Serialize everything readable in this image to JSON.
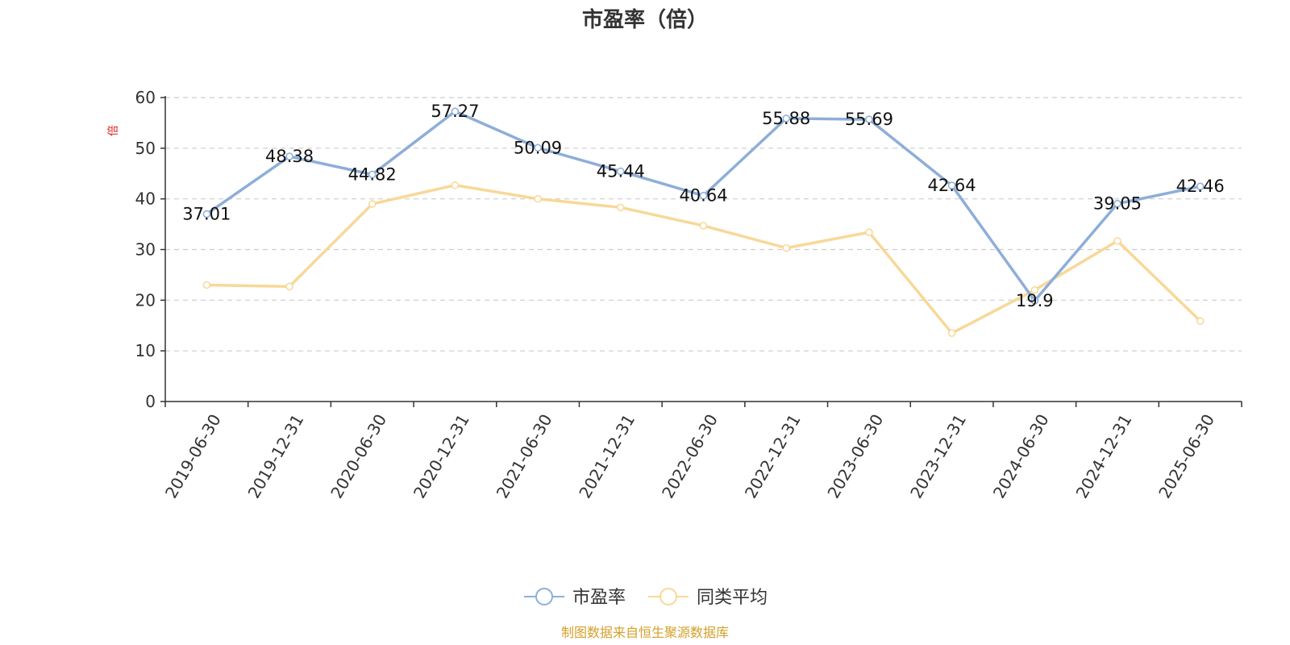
{
  "chart_data": {
    "type": "line",
    "title": "市盈率（倍）",
    "ylabel": "倍",
    "ylim": [
      0,
      60
    ],
    "yticks": [
      0,
      10,
      20,
      30,
      40,
      50,
      60
    ],
    "grid": true,
    "legend_position": "bottom-center",
    "categories": [
      "2019-06-30",
      "2019-12-31",
      "2020-06-30",
      "2020-12-31",
      "2021-06-30",
      "2021-12-31",
      "2022-06-30",
      "2022-12-31",
      "2023-06-30",
      "2023-12-31",
      "2024-06-30",
      "2024-12-31",
      "2025-06-30"
    ],
    "series": [
      {
        "name": "市盈率",
        "color": "#8eaed8",
        "values": [
          37.01,
          48.38,
          44.82,
          57.27,
          50.09,
          45.44,
          40.64,
          55.88,
          55.69,
          42.64,
          19.9,
          39.05,
          42.46
        ],
        "labels": [
          "37.01",
          "48.38",
          "44.82",
          "57.27",
          "50.09",
          "45.44",
          "40.64",
          "55.88",
          "55.69",
          "42.64",
          "19.9",
          "39.05",
          "42.46"
        ]
      },
      {
        "name": "同类平均",
        "color": "#f8d898",
        "values": [
          23.0,
          22.7,
          39.0,
          42.7,
          40.0,
          38.3,
          34.7,
          30.3,
          33.4,
          13.5,
          22.0,
          31.7,
          15.9
        ]
      }
    ]
  },
  "footer": {
    "text": "制图数据来自恒生聚源数据库",
    "color": "#d4a02a"
  }
}
